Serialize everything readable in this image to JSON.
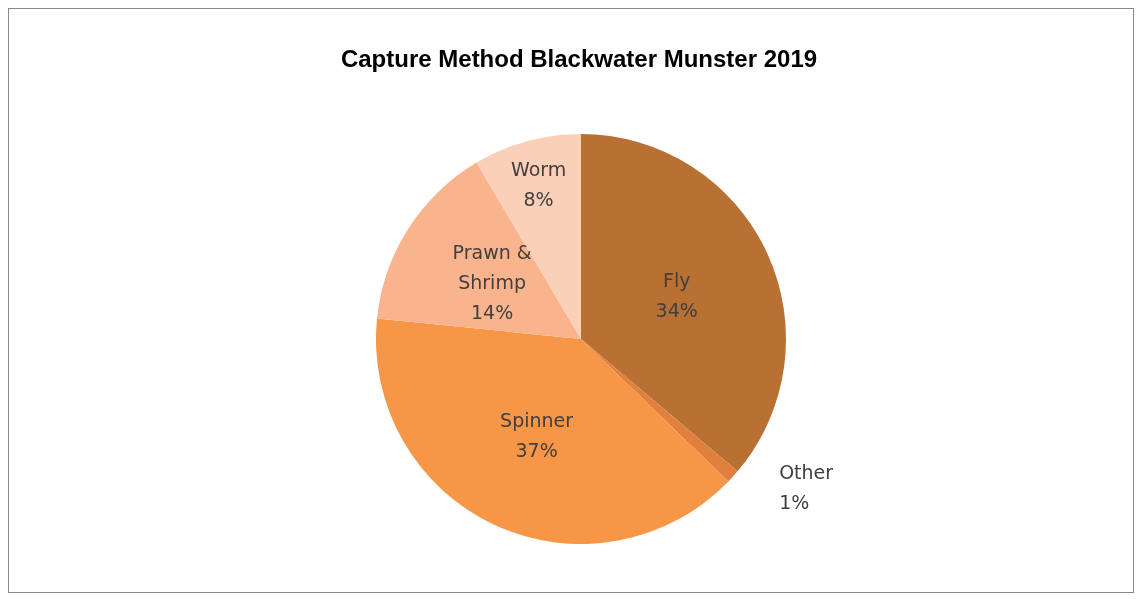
{
  "chart_data": {
    "type": "pie",
    "title": "Capture Method Blackwater Munster 2019",
    "categories": [
      "Fly",
      "Other",
      "Spinner",
      "Prawn & Shrimp",
      "Worm"
    ],
    "values": [
      34,
      1,
      37,
      14,
      8
    ],
    "value_labels": [
      "34%",
      "1%",
      "37%",
      "14%",
      "8%"
    ],
    "colors": [
      "#b87033",
      "#e0803c",
      "#f79646",
      "#f9b48e",
      "#fbd0b9"
    ],
    "legend": false
  }
}
